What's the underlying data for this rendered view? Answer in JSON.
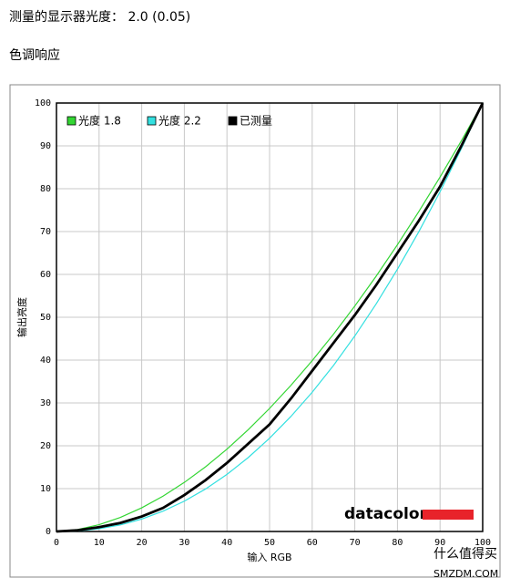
{
  "header": {
    "line1": "测量的显示器光度： 2.0 (0.05)",
    "line2": "色调响应"
  },
  "chart_data": {
    "type": "line",
    "xlabel": "输入 RGB",
    "ylabel": "输出亮度",
    "x": [
      0,
      5,
      10,
      15,
      20,
      25,
      30,
      35,
      40,
      45,
      50,
      55,
      60,
      65,
      70,
      75,
      80,
      85,
      90,
      95,
      100
    ],
    "series": [
      {
        "name": "光度 1.8",
        "color": "#33d633",
        "values": [
          0,
          0.46,
          1.58,
          3.29,
          5.52,
          8.25,
          11.45,
          15.11,
          19.22,
          23.76,
          28.72,
          34.09,
          39.87,
          46.05,
          52.62,
          59.58,
          66.92,
          74.64,
          82.73,
          91.18,
          100
        ]
      },
      {
        "name": "光度 2.2",
        "color": "#33e0e0",
        "values": [
          0,
          0.14,
          0.63,
          1.54,
          2.9,
          4.74,
          7.07,
          9.93,
          13.32,
          17.26,
          21.76,
          26.84,
          32.5,
          38.76,
          45.63,
          53.1,
          61.21,
          69.94,
          79.3,
          89.33,
          100
        ]
      },
      {
        "name": "已测量",
        "color": "#000000",
        "values": [
          0,
          0.3,
          1,
          2,
          3.5,
          5.5,
          8.5,
          12,
          16,
          20.5,
          25,
          31,
          37.5,
          44,
          50.5,
          57.5,
          65,
          72.5,
          80.5,
          90,
          100
        ]
      }
    ],
    "xlim": [
      0,
      100
    ],
    "ylim": [
      0,
      100
    ],
    "xticks": [
      0,
      10,
      20,
      30,
      40,
      50,
      60,
      70,
      80,
      90,
      100
    ],
    "yticks": [
      0,
      10,
      20,
      30,
      40,
      50,
      60,
      70,
      80,
      90,
      100
    ],
    "grid": true,
    "logo": "datacolor"
  },
  "watermark": {
    "line1": "什么值得买",
    "line2": "SMZDM.COM"
  }
}
